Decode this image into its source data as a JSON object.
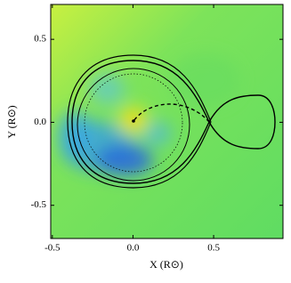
{
  "chart_data": {
    "type": "image",
    "xlabel": "X (R⊙)",
    "ylabel": "Y (R⊙)",
    "xlim": [
      -0.51,
      0.93
    ],
    "ylim": [
      -0.7,
      0.71
    ],
    "xticks": [
      -0.5,
      {
        "value": 0,
        "label": "0.0"
      },
      0.5
    ],
    "yticks": [
      -0.5,
      {
        "value": 0,
        "label": "0.0"
      },
      0.5
    ]
  }
}
